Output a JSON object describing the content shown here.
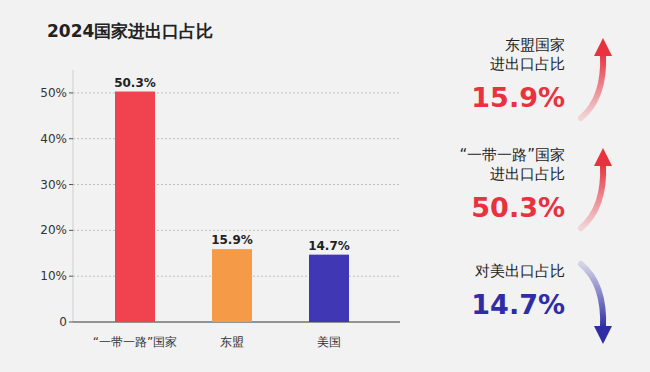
{
  "chart_data": {
    "type": "bar",
    "title": "2024国家进出口占比",
    "categories": [
      "“一带一路”国家",
      "东盟",
      "美国"
    ],
    "values": [
      50.3,
      15.9,
      14.7
    ],
    "value_labels": [
      "50.3%",
      "15.9%",
      "14.7%"
    ],
    "colors": [
      "#f0434f",
      "#f59a46",
      "#3f37b3"
    ],
    "ylim": [
      0,
      55
    ],
    "yticks": [
      0,
      {
        "value": 10,
        "label": "10%"
      },
      {
        "value": 20,
        "label": "20%"
      },
      {
        "value": 30,
        "label": "30%"
      },
      {
        "value": 40,
        "label": "40%"
      },
      {
        "value": 50,
        "label": "50%"
      }
    ],
    "grid": true,
    "data_labels": true,
    "annotations": [
      {
        "lines": [
          "东盟国家",
          "进出口占比"
        ],
        "label": "15.9%",
        "color": "#e8323f",
        "marker": "arrow-up"
      },
      {
        "lines": [
          "“一带一路”国家",
          "进出口占比"
        ],
        "label": "50.3%",
        "color": "#e8323f",
        "marker": "arrow-up"
      },
      {
        "lines": [
          "对美出口占比"
        ],
        "label": "14.7%",
        "color": "#2f2ca6",
        "marker": "arrow-down"
      }
    ]
  }
}
